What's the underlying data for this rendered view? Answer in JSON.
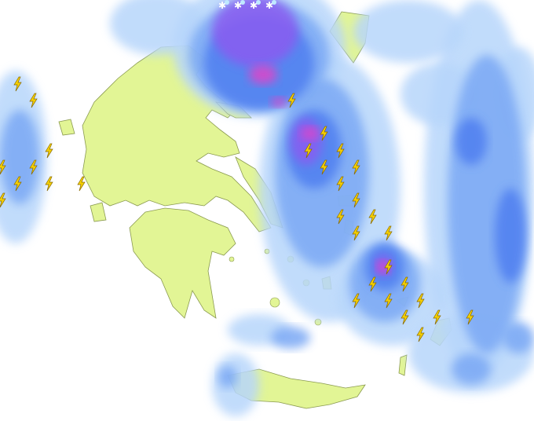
{
  "map": {
    "colors": {
      "sea": "#ffffff",
      "land": "#e2f595",
      "land_border": "#8a9a50",
      "precip_light": "#b7d6fb",
      "precip_moderate": "#7aa8f4",
      "precip_heavy": "#4f7ff0",
      "precip_very_heavy": "#8a5cf0",
      "precip_extreme": "#e044c8",
      "lightning": "#f5d000"
    },
    "icons": {
      "thunderstorm": "lightning-bolt-icon",
      "sleet": "snow-rain-icon"
    }
  }
}
